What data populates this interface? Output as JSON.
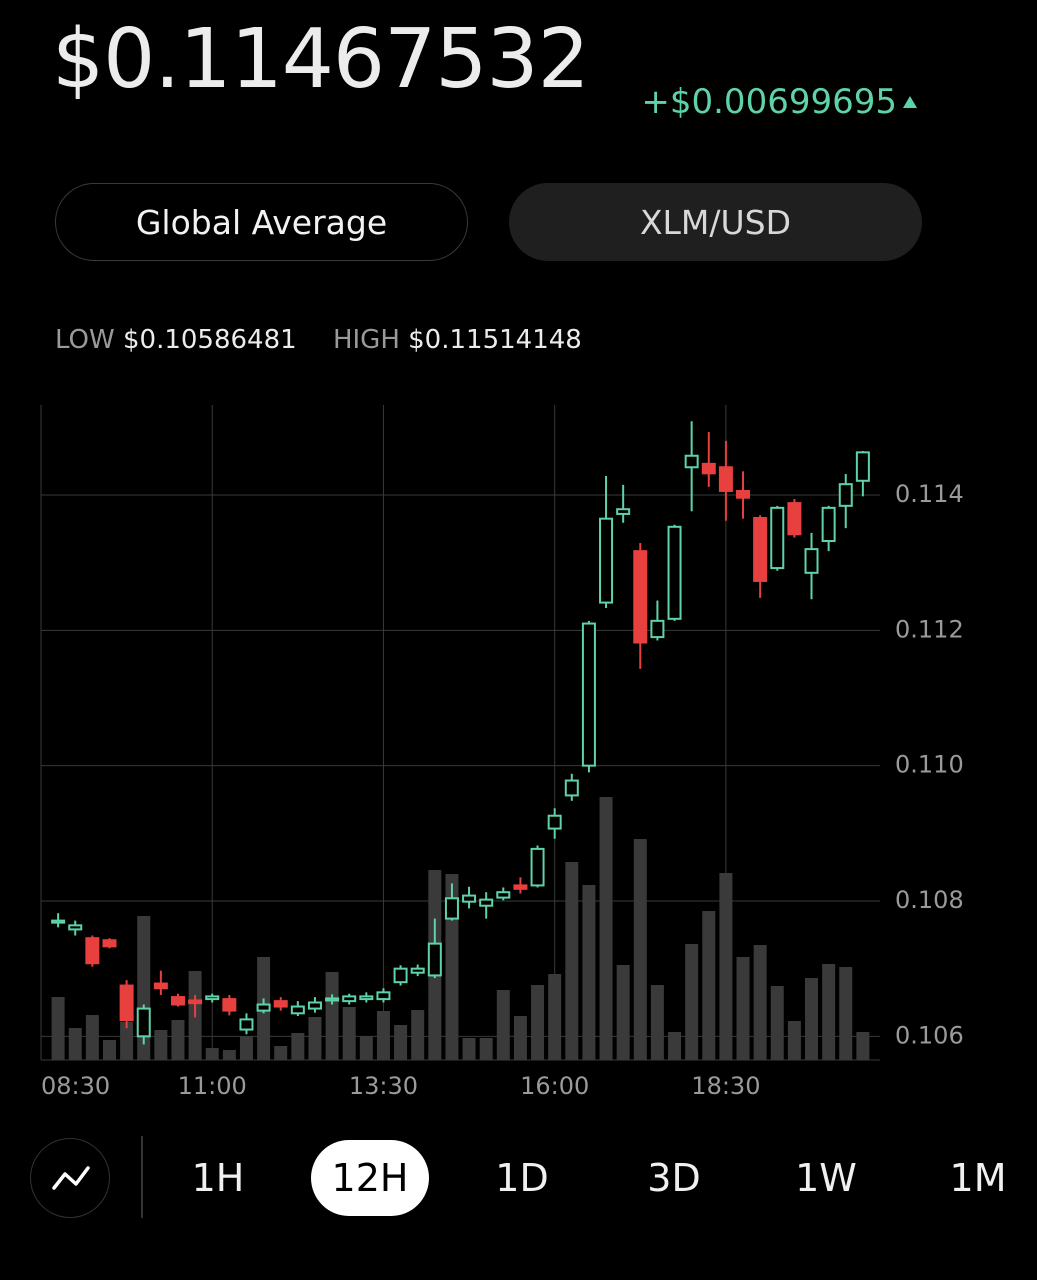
{
  "header": {
    "price": "$0.11467532",
    "change": "+$0.00699695"
  },
  "toggles": [
    "Global Average",
    "XLM/USD"
  ],
  "range": {
    "low_label": "LOW",
    "low": "$0.10586481",
    "high_label": "HIGH",
    "high": "$0.11514148"
  },
  "chart_data": {
    "type": "candlestick",
    "x": [
      "08:45",
      "09:00",
      "09:15",
      "09:30",
      "09:45",
      "10:00",
      "10:15",
      "10:30",
      "10:45",
      "11:00",
      "11:15",
      "11:30",
      "11:45",
      "12:00",
      "12:15",
      "12:30",
      "12:45",
      "13:00",
      "13:15",
      "13:30",
      "13:45",
      "14:00",
      "14:15",
      "14:30",
      "14:45",
      "15:00",
      "15:15",
      "15:30",
      "15:45",
      "16:00",
      "16:15",
      "16:30",
      "16:45",
      "17:00",
      "17:15",
      "17:30",
      "17:45",
      "18:00",
      "18:15",
      "18:30",
      "18:45",
      "19:00",
      "19:15",
      "19:30",
      "19:45",
      "20:00",
      "20:15",
      "20:30"
    ],
    "open": [
      0.10768,
      0.10758,
      0.10745,
      0.10742,
      0.10675,
      0.106,
      0.10678,
      0.10658,
      0.10653,
      0.10655,
      0.10655,
      0.1061,
      0.10638,
      0.10652,
      0.10634,
      0.10641,
      0.10653,
      0.10652,
      0.10655,
      0.10655,
      0.1068,
      0.10694,
      0.1069,
      0.10774,
      0.10799,
      0.10793,
      0.10805,
      0.10823,
      0.10823,
      0.10907,
      0.10956,
      0.11,
      0.11241,
      0.11372,
      0.11317,
      0.1119,
      0.11217,
      0.11441,
      0.11446,
      0.11441,
      0.11406,
      0.11366,
      0.11292,
      0.11388,
      0.11285,
      0.11332,
      0.11384,
      0.11421
    ],
    "high": [
      0.10782,
      0.10771,
      0.10749,
      0.10745,
      0.10683,
      0.10647,
      0.10697,
      0.10663,
      0.10661,
      0.10663,
      0.10661,
      0.10634,
      0.10656,
      0.10658,
      0.10652,
      0.10658,
      0.10662,
      0.10663,
      0.10665,
      0.10671,
      0.10705,
      0.10706,
      0.10774,
      0.10826,
      0.10821,
      0.10813,
      0.1082,
      0.10835,
      0.10882,
      0.10937,
      0.10988,
      0.11214,
      0.11428,
      0.11415,
      0.11329,
      0.11244,
      0.11356,
      0.11509,
      0.11493,
      0.1148,
      0.11435,
      0.1137,
      0.11384,
      0.11394,
      0.11344,
      0.11384,
      0.11431,
      0.11465
    ],
    "low": [
      0.10761,
      0.10749,
      0.10703,
      0.1073,
      0.10612,
      0.10588,
      0.10661,
      0.10644,
      0.10628,
      0.1065,
      0.10631,
      0.10603,
      0.10634,
      0.10638,
      0.1063,
      0.10635,
      0.10647,
      0.10647,
      0.1065,
      0.1065,
      0.10675,
      0.10689,
      0.10686,
      0.10771,
      0.10789,
      0.10774,
      0.10801,
      0.10811,
      0.1082,
      0.10892,
      0.10948,
      0.1099,
      0.11233,
      0.11359,
      0.11143,
      0.11185,
      0.11214,
      0.11376,
      0.11412,
      0.11362,
      0.11365,
      0.11248,
      0.11288,
      0.11337,
      0.11246,
      0.11317,
      0.11351,
      0.11398
    ],
    "close": [
      0.10771,
      0.10764,
      0.10708,
      0.10733,
      0.10624,
      0.10641,
      0.10671,
      0.10647,
      0.10649,
      0.10659,
      0.10638,
      0.10625,
      0.10647,
      0.10644,
      0.10644,
      0.1065,
      0.10656,
      0.10659,
      0.10659,
      0.10665,
      0.107,
      0.107,
      0.10737,
      0.10804,
      0.10808,
      0.10802,
      0.10813,
      0.10818,
      0.10877,
      0.10926,
      0.10978,
      0.1121,
      0.11365,
      0.11379,
      0.11182,
      0.11214,
      0.11353,
      0.11458,
      0.11432,
      0.11406,
      0.11396,
      0.11273,
      0.11381,
      0.11342,
      0.1132,
      0.11381,
      0.11416,
      0.11463
    ],
    "volume": [
      63,
      32,
      45,
      20,
      38,
      144,
      30,
      40,
      89,
      12,
      10,
      24,
      103,
      14,
      27,
      43,
      88,
      53,
      24,
      49,
      35,
      50,
      190,
      186,
      22,
      22,
      70,
      44,
      75,
      86,
      198,
      175,
      263,
      95,
      221,
      75,
      28,
      116,
      149,
      187,
      103,
      115,
      74,
      39,
      82,
      96,
      93,
      28
    ],
    "xlim": [
      "08:30",
      "20:45"
    ],
    "xticks": [
      "08:30",
      "11:00",
      "13:30",
      "16:00",
      "18:30"
    ],
    "ylim": [
      0.10565,
      0.11533
    ],
    "yticks": [
      0.106,
      0.108,
      {
        "value": 0.11,
        "label": "0.110"
      },
      0.112,
      0.114
    ],
    "up_color": "#5fd3a8",
    "down_color": "#e8403e",
    "volume_color": "#3a3a3a",
    "grid": true
  },
  "timeframes": [
    "1H",
    "12H",
    "1D",
    "3D",
    "1W",
    "1M"
  ],
  "selected_timeframe": 1
}
